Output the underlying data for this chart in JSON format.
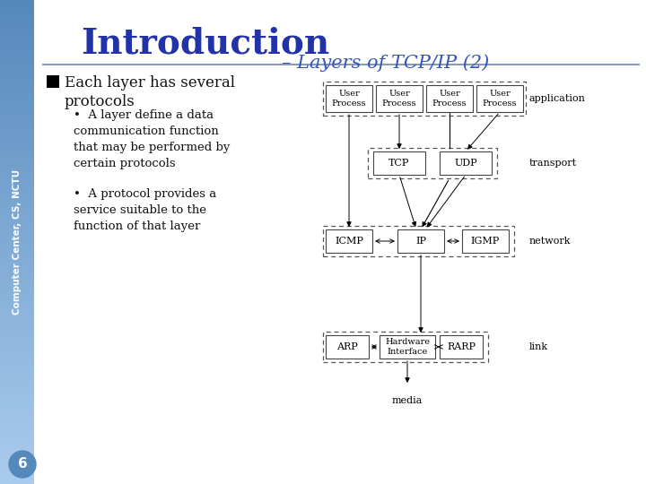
{
  "title_main": "Introduction",
  "title_sub": "– Layers of TCP/IP (2)",
  "sidebar_text": "Computer Center, CS, NCTU",
  "bg_color": "#ffffff",
  "page_number": "6",
  "bullet_head": "Each layer has several\nprotocols",
  "bullet1": "A layer define a data\ncommunication function\nthat may be performed by\ncertain protocols",
  "bullet2": "A protocol provides a\nservice suitable to the\nfunction of that layer",
  "title_color": "#2233aa",
  "subtitle_color": "#3355bb",
  "text_color": "#111111",
  "sidebar_top_color": "#5588bb",
  "sidebar_bot_color": "#aaccee",
  "diagram": {
    "app_boxes": [
      "User\nProcess",
      "User\nProcess",
      "User\nProcess",
      "User\nProcess"
    ],
    "transport_boxes": [
      "TCP",
      "UDP"
    ],
    "network_boxes": [
      "ICMP",
      "IP",
      "IGMP"
    ],
    "link_boxes": [
      "ARP",
      "Hardware\nInterface",
      "RARP"
    ],
    "layer_labels": [
      "application",
      "transport",
      "network",
      "link"
    ],
    "bottom_label": "media"
  }
}
